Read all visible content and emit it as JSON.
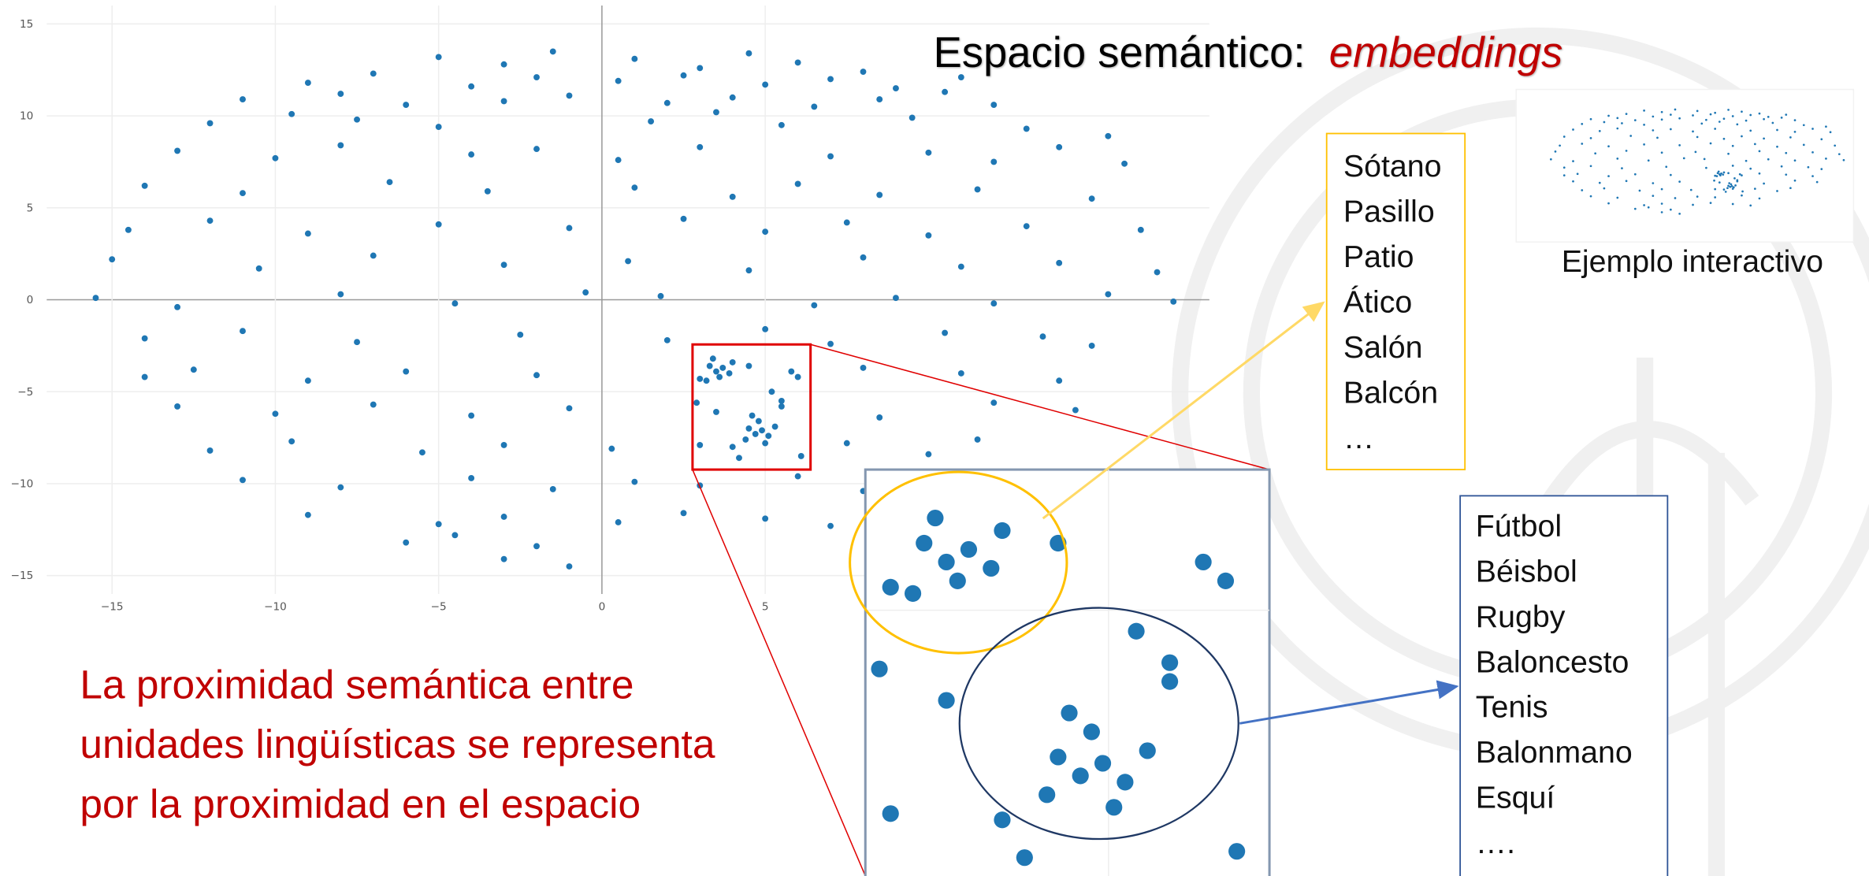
{
  "chart_data": {
    "type": "scatter",
    "color": "#1f77b4",
    "x": [
      -5,
      -3,
      -1.5,
      1,
      3,
      4.5,
      6,
      8,
      -9,
      -7,
      -4,
      -2,
      0.5,
      2.5,
      5,
      7,
      9,
      11,
      -11,
      -8,
      -6,
      -3,
      -1,
      2,
      4,
      6.5,
      8.5,
      10.5,
      12,
      -12,
      -9.5,
      -7.5,
      -5,
      1.5,
      3.5,
      5.5,
      9.5,
      13,
      15.5,
      -13,
      -10,
      -8,
      -4,
      -2,
      0.5,
      3,
      7,
      10,
      12,
      14,
      16,
      -14,
      -11,
      -6.5,
      -3.5,
      1,
      4,
      6,
      8.5,
      11.5,
      15,
      -14.5,
      -12,
      -9,
      -5,
      -1,
      2.5,
      5,
      7.5,
      10,
      13,
      16.5,
      -15,
      -10.5,
      -7,
      -3,
      0.8,
      4.5,
      8,
      11,
      14,
      17,
      -15.5,
      -13,
      -8,
      -4.5,
      -0.5,
      1.8,
      6.5,
      9,
      12,
      15.5,
      17.5,
      -14,
      -11,
      -7.5,
      -2.5,
      2,
      5,
      7,
      10.5,
      13.5,
      15,
      -14,
      -12.5,
      -9,
      -6,
      -2,
      3,
      4.5,
      6,
      8,
      11,
      14,
      -13,
      -10,
      -7,
      -4,
      -1,
      3.5,
      5.5,
      8.5,
      12,
      14.5,
      -12,
      -9.5,
      -5.5,
      -3,
      0.3,
      4,
      7.5,
      10,
      11.5,
      -11,
      -8,
      -4,
      -1.5,
      1,
      3,
      6,
      8,
      -9,
      -5,
      -3,
      0.5,
      2.5,
      5,
      7,
      -6,
      -4.5,
      -2,
      -3,
      -1,
      3.3,
      3.5,
      3.7,
      3.9,
      3.6,
      3.2,
      4.0,
      3.4,
      4.5,
      4.7,
      4.9,
      5.1,
      4.8,
      5.3,
      4.4,
      5.0,
      4.6,
      5.8,
      5.5,
      3.0,
      6.1,
      4.2,
      5.2,
      2.9
    ],
    "values": [
      13.2,
      12.8,
      13.5,
      13.1,
      12.6,
      13.4,
      12.9,
      12.4,
      11.8,
      12.3,
      11.6,
      12.1,
      11.9,
      12.2,
      11.7,
      12.0,
      11.5,
      12.1,
      10.9,
      11.2,
      10.6,
      10.8,
      11.1,
      10.7,
      11.0,
      10.5,
      10.9,
      11.3,
      10.6,
      9.6,
      10.1,
      9.8,
      9.4,
      9.7,
      10.2,
      9.5,
      9.9,
      9.3,
      8.9,
      8.1,
      7.7,
      8.4,
      7.9,
      8.2,
      7.6,
      8.3,
      7.8,
      8.0,
      7.5,
      8.3,
      7.4,
      6.2,
      5.8,
      6.4,
      5.9,
      6.1,
      5.6,
      6.3,
      5.7,
      6.0,
      5.5,
      3.8,
      4.3,
      3.6,
      4.1,
      3.9,
      4.4,
      3.7,
      4.2,
      3.5,
      4.0,
      3.8,
      2.2,
      1.7,
      2.4,
      1.9,
      2.1,
      1.6,
      2.3,
      1.8,
      2.0,
      1.5,
      0.1,
      -0.4,
      0.3,
      -0.2,
      0.4,
      0.2,
      -0.3,
      0.1,
      -0.2,
      0.3,
      -0.1,
      -2.1,
      -1.7,
      -2.3,
      -1.9,
      -2.2,
      -1.6,
      -2.4,
      -1.8,
      -2.0,
      -2.5,
      -4.2,
      -3.8,
      -4.4,
      -3.9,
      -4.1,
      -4.3,
      -3.6,
      -4.2,
      -3.7,
      -4.0,
      -4.4,
      -5.8,
      -6.2,
      -5.7,
      -6.3,
      -5.9,
      -6.1,
      -5.8,
      -6.4,
      -5.6,
      -6.0,
      -8.2,
      -7.7,
      -8.3,
      -7.9,
      -8.1,
      -8.0,
      -7.8,
      -8.4,
      -7.6,
      -9.8,
      -10.2,
      -9.7,
      -10.3,
      -9.9,
      -10.1,
      -9.6,
      -10.4,
      -11.7,
      -12.2,
      -11.8,
      -12.1,
      -11.6,
      -11.9,
      -12.3,
      -13.2,
      -12.8,
      -13.4,
      -14.1,
      -14.5,
      -3.6,
      -3.9,
      -3.7,
      -4.0,
      -4.2,
      -4.4,
      -3.4,
      -3.2,
      -7.0,
      -7.3,
      -7.1,
      -7.4,
      -6.6,
      -6.9,
      -7.6,
      -7.8,
      -6.3,
      -3.9,
      -5.5,
      -7.9,
      -8.5,
      -8.6,
      -5.0,
      -5.6
    ],
    "xlim": [
      -17,
      18.6
    ],
    "ylim": [
      -16,
      16
    ],
    "xticks": [
      {
        "value": -15,
        "label": "−15"
      },
      {
        "value": -10,
        "label": "−10"
      },
      {
        "value": -5,
        "label": "−5"
      },
      0,
      5
    ],
    "yticks": [
      {
        "value": -15,
        "label": "−15"
      },
      {
        "value": -10,
        "label": "−10"
      },
      {
        "value": -5,
        "label": "−5"
      },
      0,
      5,
      10,
      15
    ],
    "grid": true
  },
  "slide": {
    "title": "Espacio semántico:",
    "title_emphasis": "embeddings",
    "thumbnail_caption": "Ejemplo interactivo",
    "statement": [
      "La proximidad semántica entre",
      "unidades lingüísticas se representa",
      "por la proximidad en el espacio"
    ],
    "word_lists": [
      [
        "Sótano",
        "Pasillo",
        "Patio",
        "Ático",
        "Salón",
        "Balcón",
        "…"
      ],
      [
        "Fútbol",
        "Béisbol",
        "Rugby",
        "Baloncesto",
        "Tenis",
        "Balonmano",
        "Esquí",
        "…."
      ]
    ]
  }
}
